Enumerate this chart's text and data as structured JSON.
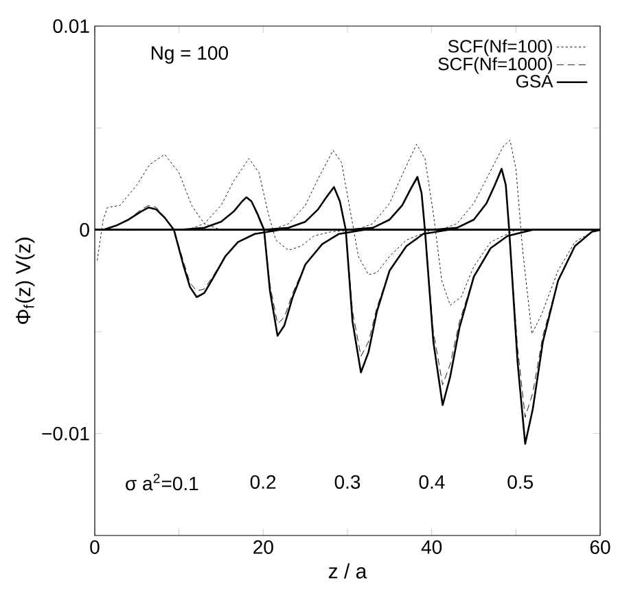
{
  "chart_data": {
    "type": "line",
    "xlabel": "z / a",
    "ylabel": "Φ$_{f}$(z)  V(z)",
    "xlim": [
      0,
      60
    ],
    "ylim": [
      -0.015,
      0.01
    ],
    "xticks": [
      0,
      {
        "value": 10,
        "label": null
      },
      20,
      {
        "value": 30,
        "label": null
      },
      40,
      {
        "value": 50,
        "label": null
      },
      60
    ],
    "yticks": [
      {
        "value": -0.01,
        "label": "−0.01"
      },
      {
        "value": -0.005,
        "label": null
      },
      0,
      {
        "value": 0.005,
        "label": null
      },
      0.01
    ],
    "legend": "top right",
    "marker": "none",
    "annotations": [
      "Ng = 100",
      "σ a$^{2}$=0.1",
      "0.2",
      "0.3",
      "0.4",
      "0.5"
    ],
    "series": [
      {
        "name": "SCF(Nf=100)",
        "color": "#000000",
        "line_style": "dotted",
        "x": [
          0.3,
          1,
          1.5,
          3,
          5,
          6.5,
          8.3,
          10,
          11.5,
          13,
          15,
          60
        ],
        "values": [
          -0.0015,
          0.0005,
          0.0011,
          0.0012,
          0.0022,
          0.0032,
          0.0037,
          0.0028,
          0.0012,
          0.0003,
          0,
          0
        ]
      },
      {
        "color": "#000000",
        "line_style": "dotted",
        "x": [
          0,
          11,
          13,
          15,
          16.5,
          18.3,
          19.5,
          20.6,
          21.5,
          23,
          24.5,
          26,
          28,
          31,
          60
        ],
        "values": [
          0,
          0,
          0.0003,
          0.0012,
          0.0024,
          0.0035,
          0.0028,
          0.0008,
          -0.0005,
          -0.001,
          -0.0008,
          -0.0003,
          -0.0001,
          0,
          0
        ]
      },
      {
        "color": "#000000",
        "line_style": "dotted",
        "x": [
          0,
          21,
          23,
          25,
          26.5,
          28.3,
          29.3,
          30.3,
          31.3,
          32.5,
          33.5,
          35,
          37,
          40,
          60
        ],
        "values": [
          0,
          0,
          0.0003,
          0.0012,
          0.0025,
          0.0039,
          0.0033,
          0.001,
          -0.0013,
          -0.0022,
          -0.0021,
          -0.0013,
          -0.0005,
          0,
          0
        ]
      },
      {
        "color": "#000000",
        "line_style": "dotted",
        "x": [
          0,
          31,
          33,
          35,
          36.5,
          38.2,
          39.2,
          40.2,
          41.2,
          42.2,
          43.5,
          45,
          47,
          50,
          60
        ],
        "values": [
          0,
          0,
          0.0003,
          0.0013,
          0.0027,
          0.0042,
          0.0035,
          0.0008,
          -0.0025,
          -0.0037,
          -0.0033,
          -0.0018,
          -0.0006,
          0,
          0
        ]
      },
      {
        "color": "#000000",
        "line_style": "dotted",
        "x": [
          0,
          41,
          43,
          45,
          47,
          48.5,
          49.3,
          50,
          50.8,
          51.9,
          53,
          55,
          57,
          59,
          60
        ],
        "values": [
          0,
          0,
          0.0003,
          0.0013,
          0.0029,
          0.0041,
          0.0044,
          0.003,
          -0.001,
          -0.0051,
          -0.0042,
          -0.002,
          -0.0006,
          -0.0001,
          0
        ]
      },
      {
        "name": "SCF(Nf=1000)",
        "color": "#000000",
        "line_style": "dashed",
        "x": [
          0,
          1,
          2.5,
          4,
          5.5,
          6.4,
          7.3,
          8.3,
          9.4,
          10.5,
          11.3,
          12.1,
          13,
          14,
          15.5,
          17,
          19,
          22,
          60
        ],
        "values": [
          0,
          0,
          0.0002,
          0.0005,
          0.001,
          0.0012,
          0.0011,
          0.0006,
          0,
          -0.0015,
          -0.0026,
          -0.003,
          -0.0029,
          -0.0023,
          -0.0013,
          -0.0006,
          -0.0002,
          0,
          0
        ]
      },
      {
        "color": "#000000",
        "line_style": "dashed",
        "x": [
          0,
          10,
          13,
          15,
          16.5,
          17.5,
          18,
          18.6,
          19.3,
          20.1,
          20.8,
          21.7,
          22.5,
          23.5,
          25,
          27,
          29,
          32,
          60
        ],
        "values": [
          0,
          0,
          0.0001,
          0.0004,
          0.0009,
          0.0014,
          0.0016,
          0.0014,
          0.0007,
          0,
          -0.0027,
          -0.0046,
          -0.0043,
          -0.0031,
          -0.0017,
          -0.0007,
          -0.0002,
          0,
          0
        ]
      },
      {
        "color": "#000000",
        "line_style": "dashed",
        "x": [
          0,
          20,
          23,
          25,
          26.5,
          27.5,
          28.4,
          29.1,
          29.8,
          30.6,
          31.6,
          32.5,
          33.5,
          35,
          37,
          39,
          42,
          60
        ],
        "values": [
          0,
          0,
          0.0001,
          0.0004,
          0.001,
          0.0016,
          0.0021,
          0.0014,
          0,
          -0.004,
          -0.0062,
          -0.0055,
          -0.0038,
          -0.002,
          -0.0008,
          -0.0002,
          0,
          0
        ]
      },
      {
        "color": "#000000",
        "line_style": "dashed",
        "x": [
          0,
          30,
          33,
          35,
          36.5,
          37.5,
          38.3,
          38.8,
          39.2,
          40.2,
          41.3,
          42.2,
          43.3,
          45,
          47,
          49,
          52,
          60
        ],
        "values": [
          0,
          0,
          0.0001,
          0.0005,
          0.0012,
          0.002,
          0.0025,
          0.0018,
          0,
          -0.005,
          -0.0076,
          -0.0066,
          -0.0045,
          -0.0023,
          -0.0009,
          -0.0003,
          0,
          0
        ]
      },
      {
        "color": "#000000",
        "line_style": "dashed",
        "x": [
          0,
          40,
          43,
          45,
          46.5,
          47.5,
          48.3,
          48.8,
          49.2,
          50.2,
          51.1,
          52,
          53.2,
          55,
          57,
          59,
          60
        ],
        "values": [
          0,
          0,
          0.0001,
          0.0005,
          0.0013,
          0.0022,
          0.0029,
          0.0022,
          0,
          -0.0058,
          -0.0092,
          -0.008,
          -0.0052,
          -0.0025,
          -0.0008,
          -0.0001,
          0
        ]
      },
      {
        "name": "GSA",
        "color": "#000000",
        "line_style": "solid",
        "x": [
          0,
          1,
          2.5,
          4,
          5.5,
          6.4,
          7.3,
          8.3,
          9.4,
          10.5,
          11.3,
          12.1,
          13,
          14,
          15.5,
          17,
          19,
          22,
          60
        ],
        "values": [
          0,
          0,
          0.0002,
          0.0005,
          0.0009,
          0.0011,
          0.001,
          0.0006,
          0,
          -0.0017,
          -0.0028,
          -0.0033,
          -0.0031,
          -0.0024,
          -0.0013,
          -0.0006,
          -0.0002,
          0,
          0
        ]
      },
      {
        "color": "#000000",
        "line_style": "solid",
        "x": [
          0,
          10,
          13,
          15,
          16.5,
          17.5,
          18,
          18.6,
          19.3,
          20.1,
          20.8,
          21.7,
          22.5,
          23.5,
          25,
          27,
          29,
          32,
          60
        ],
        "values": [
          0,
          0,
          0.0001,
          0.0004,
          0.0009,
          0.0014,
          0.0016,
          0.0014,
          0.0008,
          0,
          -0.003,
          -0.0052,
          -0.0047,
          -0.0033,
          -0.0017,
          -0.0007,
          -0.0002,
          0,
          0
        ]
      },
      {
        "color": "#000000",
        "line_style": "solid",
        "x": [
          0,
          20,
          23,
          25,
          26.5,
          27.5,
          28.4,
          29.1,
          29.8,
          30.6,
          31.6,
          32.5,
          33.5,
          35,
          37,
          39,
          42,
          60
        ],
        "values": [
          0,
          0,
          0.0001,
          0.0004,
          0.001,
          0.0016,
          0.0021,
          0.0014,
          0,
          -0.0045,
          -0.007,
          -0.006,
          -0.004,
          -0.002,
          -0.0008,
          -0.0002,
          0,
          0
        ]
      },
      {
        "color": "#000000",
        "line_style": "solid",
        "x": [
          0,
          30,
          33,
          35,
          36.5,
          37.5,
          38.3,
          38.8,
          39.2,
          40.2,
          41.3,
          42.2,
          43.3,
          45,
          47,
          49,
          52,
          60
        ],
        "values": [
          0,
          0,
          0.0001,
          0.0005,
          0.0012,
          0.002,
          0.0026,
          0.0018,
          0,
          -0.0055,
          -0.0086,
          -0.0072,
          -0.0048,
          -0.0023,
          -0.0009,
          -0.0003,
          0,
          0
        ]
      },
      {
        "color": "#000000",
        "line_style": "solid",
        "x": [
          0,
          40,
          43,
          45,
          46.5,
          47.5,
          48.3,
          48.8,
          49.2,
          50.2,
          51.1,
          52,
          53.2,
          55,
          57,
          59,
          60
        ],
        "values": [
          0,
          0,
          0.0001,
          0.0005,
          0.0013,
          0.0022,
          0.003,
          0.0022,
          0,
          -0.0065,
          -0.0105,
          -0.0088,
          -0.0055,
          -0.0025,
          -0.0008,
          -0.0001,
          0
        ]
      }
    ]
  }
}
